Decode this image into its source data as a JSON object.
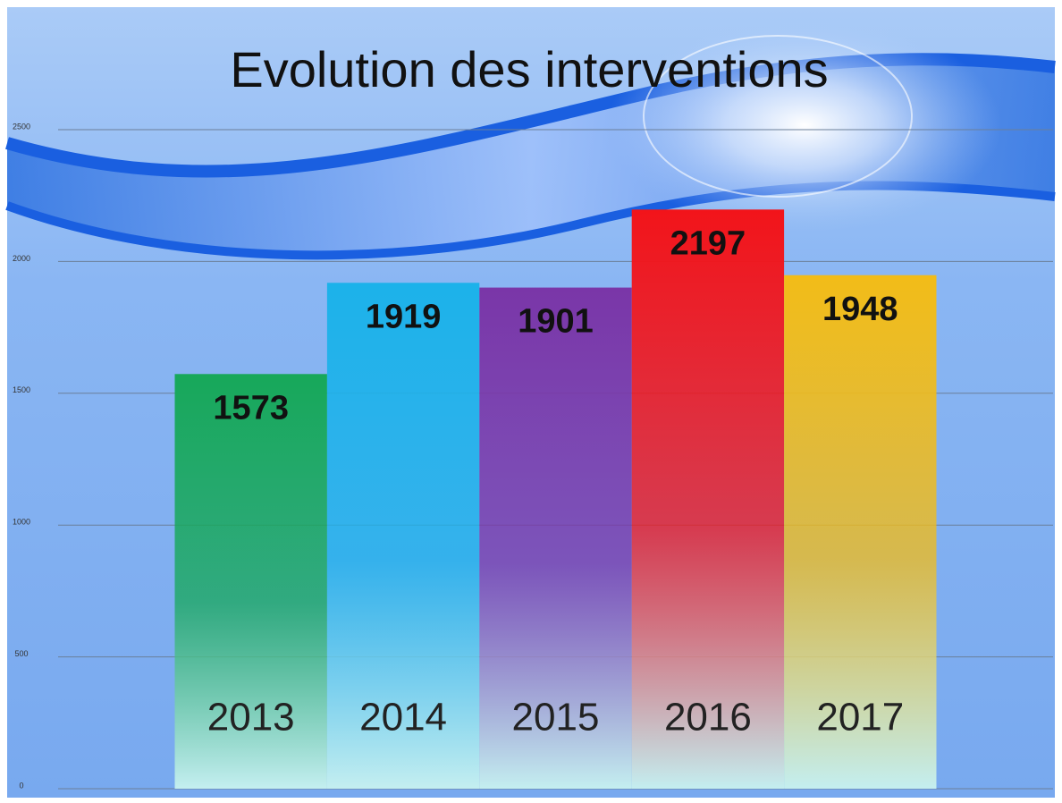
{
  "chart_data": {
    "type": "bar",
    "title": "Evolution des interventions",
    "categories": [
      "2013",
      "2014",
      "2015",
      "2016",
      "2017"
    ],
    "values": [
      1573,
      1919,
      1901,
      2197,
      1948
    ],
    "colors": [
      "#17a85a",
      "#1cb2ea",
      "#7a36a8",
      "#f2141a",
      "#f2bc18"
    ],
    "ylim": [
      0,
      2500
    ],
    "yticks": [
      0,
      500,
      1000,
      1500,
      2000,
      2500
    ],
    "grid": true
  }
}
